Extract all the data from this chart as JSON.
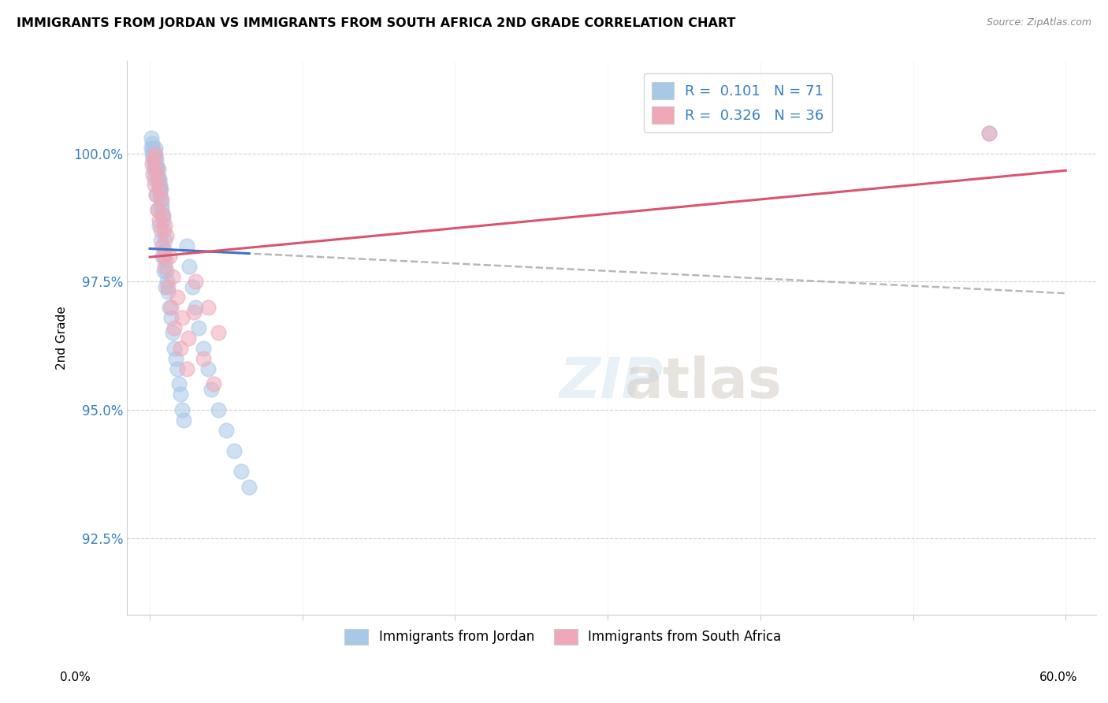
{
  "title": "IMMIGRANTS FROM JORDAN VS IMMIGRANTS FROM SOUTH AFRICA 2ND GRADE CORRELATION CHART",
  "source": "Source: ZipAtlas.com",
  "ylabel": "2nd Grade",
  "xlim": [
    -1.5,
    62
  ],
  "ylim": [
    91.0,
    101.8
  ],
  "yticks": [
    92.5,
    95.0,
    97.5,
    100.0
  ],
  "ytick_labels": [
    "92.5%",
    "95.0%",
    "97.5%",
    "100.0%"
  ],
  "jordan_color": "#a8c8e8",
  "south_africa_color": "#f0a8b8",
  "jordan_line_color": "#4472c4",
  "south_africa_line_color": "#d9546e",
  "gray_dash_color": "#b0b0b0",
  "R_jordan": 0.101,
  "N_jordan": 71,
  "R_south_africa": 0.326,
  "N_south_africa": 36,
  "jordan_x": [
    0.1,
    0.15,
    0.18,
    0.2,
    0.22,
    0.25,
    0.28,
    0.3,
    0.32,
    0.35,
    0.38,
    0.4,
    0.42,
    0.45,
    0.48,
    0.5,
    0.52,
    0.55,
    0.58,
    0.6,
    0.62,
    0.65,
    0.68,
    0.7,
    0.72,
    0.75,
    0.78,
    0.8,
    0.85,
    0.9,
    0.95,
    1.0,
    1.05,
    1.1,
    1.15,
    1.2,
    1.3,
    1.4,
    1.5,
    1.6,
    1.7,
    1.8,
    1.9,
    2.0,
    2.1,
    2.2,
    2.4,
    2.6,
    2.8,
    3.0,
    3.2,
    3.5,
    3.8,
    4.0,
    4.5,
    5.0,
    5.5,
    6.0,
    6.5,
    0.12,
    0.17,
    0.23,
    0.33,
    0.43,
    0.53,
    0.63,
    0.73,
    0.83,
    0.93,
    1.03,
    55.0
  ],
  "jordan_y": [
    100.1,
    100.2,
    100.0,
    99.9,
    100.1,
    100.0,
    99.8,
    99.9,
    100.0,
    100.1,
    99.7,
    99.8,
    99.9,
    99.6,
    99.7,
    99.5,
    99.6,
    99.7,
    99.4,
    99.5,
    99.3,
    99.4,
    99.2,
    99.3,
    99.1,
    99.0,
    98.9,
    98.8,
    98.7,
    98.5,
    98.3,
    98.1,
    97.9,
    97.7,
    97.5,
    97.3,
    97.0,
    96.8,
    96.5,
    96.2,
    96.0,
    95.8,
    95.5,
    95.3,
    95.0,
    94.8,
    98.2,
    97.8,
    97.4,
    97.0,
    96.6,
    96.2,
    95.8,
    95.4,
    95.0,
    94.6,
    94.2,
    93.8,
    93.5,
    100.3,
    100.0,
    99.7,
    99.5,
    99.2,
    98.9,
    98.6,
    98.3,
    98.0,
    97.7,
    97.4,
    100.4
  ],
  "sa_x": [
    0.15,
    0.25,
    0.35,
    0.45,
    0.55,
    0.65,
    0.75,
    0.85,
    0.95,
    1.1,
    1.3,
    1.5,
    1.8,
    2.1,
    2.5,
    3.0,
    3.8,
    4.5,
    0.2,
    0.3,
    0.4,
    0.5,
    0.6,
    0.7,
    0.8,
    0.9,
    1.0,
    1.2,
    1.4,
    1.6,
    2.0,
    2.4,
    2.9,
    3.5,
    4.2,
    55.0
  ],
  "sa_y": [
    99.8,
    99.9,
    100.0,
    99.7,
    99.5,
    99.3,
    99.1,
    98.8,
    98.6,
    98.4,
    98.0,
    97.6,
    97.2,
    96.8,
    96.4,
    97.5,
    97.0,
    96.5,
    99.6,
    99.4,
    99.2,
    98.9,
    98.7,
    98.5,
    98.2,
    98.0,
    97.8,
    97.4,
    97.0,
    96.6,
    96.2,
    95.8,
    96.9,
    96.0,
    95.5,
    100.4
  ]
}
